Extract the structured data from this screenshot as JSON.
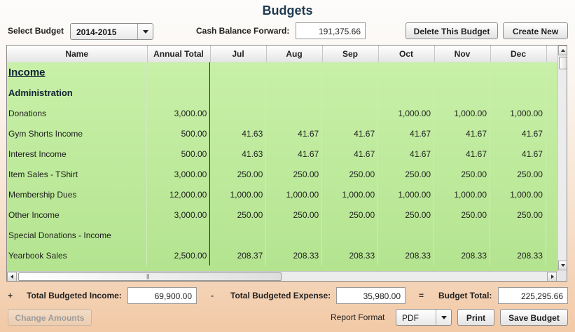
{
  "title": "Budgets",
  "select_budget": {
    "label": "Select Budget",
    "value": "2014-2015"
  },
  "cash_balance": {
    "label": "Cash Balance Forward:",
    "value": "191,375.66"
  },
  "buttons": {
    "delete": "Delete This Budget",
    "create": "Create New",
    "change_amounts": "Change Amounts",
    "print": "Print",
    "save": "Save Budget"
  },
  "columns": [
    "Name",
    "Annual Total",
    "Jul",
    "Aug",
    "Sep",
    "Oct",
    "Nov",
    "Dec"
  ],
  "rows": [
    {
      "type": "section",
      "name": "Income",
      "values": [
        "",
        "",
        "",
        "",
        "",
        "",
        ""
      ]
    },
    {
      "type": "subsection",
      "name": "Administration",
      "values": [
        "",
        "",
        "",
        "",
        "",
        "",
        ""
      ]
    },
    {
      "type": "item",
      "name": "Donations",
      "values": [
        "3,000.00",
        "",
        "",
        "",
        "1,000.00",
        "1,000.00",
        "1,000.00"
      ]
    },
    {
      "type": "item",
      "name": "Gym Shorts Income",
      "values": [
        "500.00",
        "41.63",
        "41.67",
        "41.67",
        "41.67",
        "41.67",
        "41.67"
      ]
    },
    {
      "type": "item",
      "name": "Interest Income",
      "values": [
        "500.00",
        "41.63",
        "41.67",
        "41.67",
        "41.67",
        "41.67",
        "41.67"
      ]
    },
    {
      "type": "item",
      "name": "Item Sales - TShirt",
      "values": [
        "3,000.00",
        "250.00",
        "250.00",
        "250.00",
        "250.00",
        "250.00",
        "250.00"
      ]
    },
    {
      "type": "item",
      "name": "Membership Dues",
      "values": [
        "12,000.00",
        "1,000.00",
        "1,000.00",
        "1,000.00",
        "1,000.00",
        "1,000.00",
        "1,000.00"
      ]
    },
    {
      "type": "item",
      "name": "Other Income",
      "values": [
        "3,000.00",
        "250.00",
        "250.00",
        "250.00",
        "250.00",
        "250.00",
        "250.00"
      ]
    },
    {
      "type": "item",
      "name": "Special Donations - Income",
      "values": [
        "",
        "",
        "",
        "",
        "",
        "",
        ""
      ]
    },
    {
      "type": "item",
      "name": "Yearbook Sales",
      "values": [
        "2,500.00",
        "208.37",
        "208.33",
        "208.33",
        "208.33",
        "208.33",
        "208.33"
      ]
    }
  ],
  "totals": {
    "plus": "+",
    "minus": "-",
    "equals": "=",
    "income_label": "Total Budgeted Income:",
    "income_value": "69,900.00",
    "expense_label": "Total Budgeted Expense:",
    "expense_value": "35,980.00",
    "total_label": "Budget Total:",
    "total_value": "225,295.66"
  },
  "report_format": {
    "label": "Report Format",
    "value": "PDF"
  },
  "icons": {
    "scroll_up": "triangle-up-icon",
    "scroll_down": "triangle-down-icon",
    "scroll_left": "triangle-left-icon",
    "scroll_right": "triangle-right-icon",
    "dropdown": "chevron-down-icon"
  },
  "colors": {
    "title": "#1f3a4f",
    "grid_green": "#bdea9b",
    "background_peach": "#f2c9a6"
  }
}
